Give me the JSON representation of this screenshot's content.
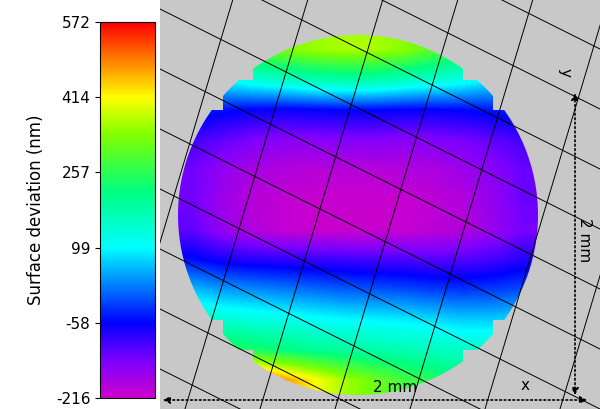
{
  "chart_data": {
    "type": "heatmap",
    "tick_labels": false,
    "cells": [
      [
        null,
        null,
        300,
        330,
        350,
        360,
        360,
        340,
        300,
        260,
        null,
        null
      ],
      [
        null,
        100,
        130,
        150,
        170,
        180,
        180,
        160,
        140,
        120,
        90,
        null
      ],
      [
        -30,
        -50,
        -60,
        -65,
        -60,
        -55,
        -55,
        -60,
        -60,
        -55,
        -45,
        -30
      ],
      [
        -100,
        -120,
        -140,
        -150,
        -150,
        -145,
        -145,
        -150,
        -145,
        -135,
        -120,
        -100
      ],
      [
        -130,
        -160,
        -180,
        -190,
        -195,
        -195,
        -195,
        -190,
        -185,
        -170,
        -150,
        -125
      ],
      [
        -130,
        -170,
        -195,
        -205,
        -210,
        -212,
        -212,
        -210,
        -200,
        -190,
        -160,
        -125
      ],
      [
        -120,
        -160,
        -190,
        -205,
        -210,
        -212,
        -212,
        -208,
        -200,
        -190,
        -165,
        -135
      ],
      [
        -50,
        -70,
        -80,
        -85,
        -90,
        -95,
        -100,
        -105,
        -110,
        -110,
        -100,
        -80
      ],
      [
        60,
        40,
        30,
        20,
        10,
        0,
        -5,
        -10,
        -20,
        -25,
        -20,
        -10
      ],
      [
        160,
        140,
        130,
        120,
        110,
        100,
        95,
        90,
        80,
        70,
        70,
        80
      ],
      [
        null,
        260,
        240,
        220,
        200,
        190,
        180,
        170,
        160,
        150,
        150,
        null
      ],
      [
        null,
        null,
        540,
        480,
        420,
        360,
        320,
        280,
        250,
        220,
        null,
        null
      ]
    ],
    "colorbar": {
      "label": "Surface deviation (nm)",
      "range": [
        -216,
        572
      ],
      "ticks": [
        572,
        414,
        257,
        99,
        -58,
        -216
      ]
    },
    "annotations": {
      "x_dimension": "2 mm",
      "y_dimension": "2 mm",
      "x_axis": "x",
      "y_axis": "y"
    }
  }
}
